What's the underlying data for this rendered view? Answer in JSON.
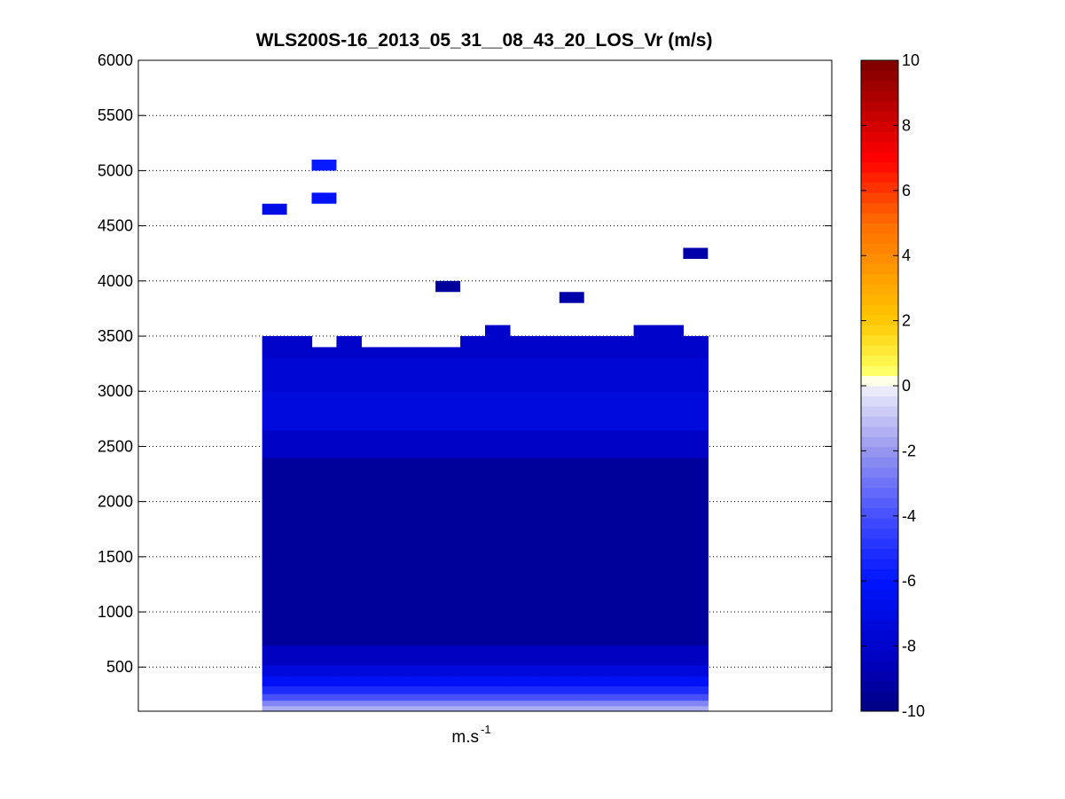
{
  "chart_data": {
    "type": "heatmap",
    "title": "WLS200S-16_2013_05_31__08_43_20_LOS_Vr (m/s)",
    "xlabel": "m.s",
    "xlabel_superscript": "-1",
    "ylabel": "",
    "ylim": [
      100,
      6000
    ],
    "yticks": [
      500,
      1000,
      1500,
      2000,
      2500,
      3000,
      3500,
      4000,
      4500,
      5000,
      5500,
      6000
    ],
    "grid": "horizontal dotted",
    "colorbar": {
      "location": "right",
      "clim": [
        -10,
        10
      ],
      "ticks": [
        -10,
        -8,
        -6,
        -4,
        -2,
        0,
        2,
        4,
        6,
        8,
        10
      ],
      "colormap": "blue-white-yellow-red"
    },
    "profiles": {
      "columns": 18,
      "occupied_columns_first_last": [
        5,
        22
      ],
      "total_columns_on_axis": 28,
      "range_gate_m": 100,
      "column_top_m": [
        3500,
        3500,
        3400,
        3500,
        3400,
        3400,
        3400,
        3400,
        3500,
        3600,
        3500,
        3500,
        3500,
        3500,
        3500,
        3600,
        3600,
        3500
      ],
      "velocity_layers": [
        {
          "from_m": 100,
          "to_m": 150,
          "vr": -1.5
        },
        {
          "from_m": 150,
          "to_m": 200,
          "vr": -2.5
        },
        {
          "from_m": 200,
          "to_m": 260,
          "vr": -4.0
        },
        {
          "from_m": 260,
          "to_m": 330,
          "vr": -5.2
        },
        {
          "from_m": 330,
          "to_m": 420,
          "vr": -6.4
        },
        {
          "from_m": 420,
          "to_m": 520,
          "vr": -7.4
        },
        {
          "from_m": 520,
          "to_m": 700,
          "vr": -8.4
        },
        {
          "from_m": 700,
          "to_m": 2400,
          "vr": -9.4
        },
        {
          "from_m": 2400,
          "to_m": 2650,
          "vr": -8.2
        },
        {
          "from_m": 2650,
          "to_m": 3000,
          "vr": -7.3
        },
        {
          "from_m": 3000,
          "to_m": 3300,
          "vr": -7.6
        },
        {
          "from_m": 3300,
          "to_m": 3600,
          "vr": -8.0
        }
      ],
      "isolated_cells": [
        {
          "column": 5,
          "height_m": 4650,
          "vr": -7.0
        },
        {
          "column": 7,
          "height_m": 5050,
          "vr": -5.8
        },
        {
          "column": 7,
          "height_m": 4750,
          "vr": -6.2
        },
        {
          "column": 12,
          "height_m": 3950,
          "vr": -9.4
        },
        {
          "column": 17,
          "height_m": 3850,
          "vr": -9.0
        },
        {
          "column": 22,
          "height_m": 4250,
          "vr": -9.0
        }
      ]
    }
  }
}
